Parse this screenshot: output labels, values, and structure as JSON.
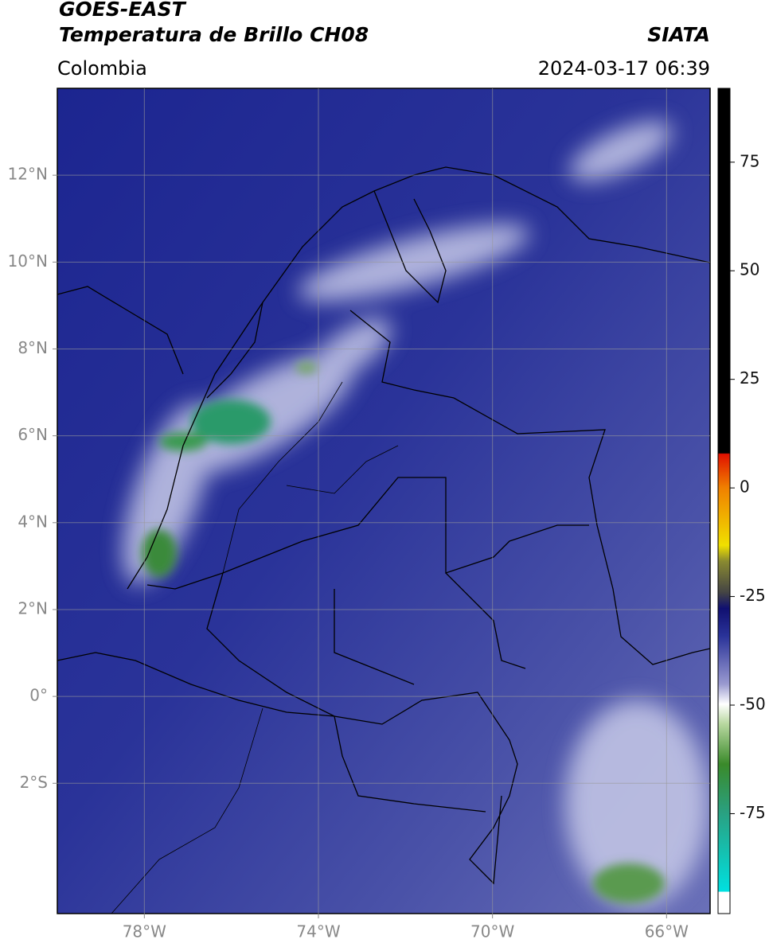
{
  "header": {
    "title": "GOES-EAST",
    "subtitle": "Temperatura de Brillo CH08",
    "source": "SIATA",
    "region": "Colombia",
    "datetime": "2024-03-17 06:39"
  },
  "map": {
    "xlim": [
      -80,
      -65
    ],
    "ylim": [
      -5,
      14
    ],
    "xticks": [
      {
        "value": -78,
        "label": "78°W"
      },
      {
        "value": -74,
        "label": "74°W"
      },
      {
        "value": -70,
        "label": "70°W"
      },
      {
        "value": -66,
        "label": "66°W"
      }
    ],
    "yticks": [
      {
        "value": 12,
        "label": "12°N"
      },
      {
        "value": 10,
        "label": "10°N"
      },
      {
        "value": 8,
        "label": "8°N"
      },
      {
        "value": 6,
        "label": "6°N"
      },
      {
        "value": 4,
        "label": "4°N"
      },
      {
        "value": 2,
        "label": "2°N"
      },
      {
        "value": 0,
        "label": "0°"
      },
      {
        "value": -2,
        "label": "2°S"
      }
    ],
    "grid": true
  },
  "colorbar": {
    "lim": [
      -98,
      92
    ],
    "ticks": [
      75,
      50,
      25,
      0,
      -25,
      -50,
      -75
    ]
  }
}
